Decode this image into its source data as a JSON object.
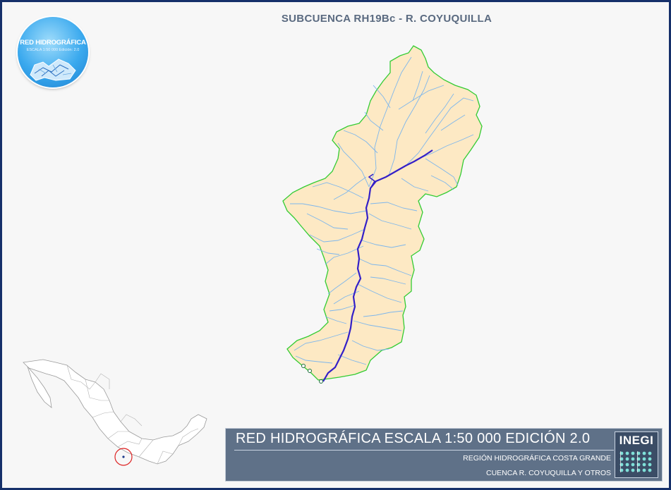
{
  "title": "SUBCUENCA RH19Bc - R. COYUQUILLA",
  "logo": {
    "title": "RED HIDROGRÁFICA",
    "subtitle": "ESCALA 1:50 000 Edición: 2.0"
  },
  "banner": {
    "title": "RED HIDROGRÁFICA ESCALA 1:50 000 EDICIÓN 2.0",
    "region": "REGIÓN HIDROGRÁFICA COSTA GRANDE",
    "cuenca": "CUENCA R. COYUQUILLA Y OTROS",
    "brand": "INEGI"
  },
  "colors": {
    "frame": "#16306a",
    "basin_fill": "#fde9c4",
    "basin_outline": "#33cc33",
    "tributaries": "#7db6ec",
    "main_river": "#3320c8",
    "banner_bg": "#5f7188",
    "locator_marker": "#dd2222"
  },
  "icons": {
    "logo": "red-hidrografica-logo",
    "locator": "mexico-locator-map-icon",
    "brand": "inegi-logo-icon"
  }
}
